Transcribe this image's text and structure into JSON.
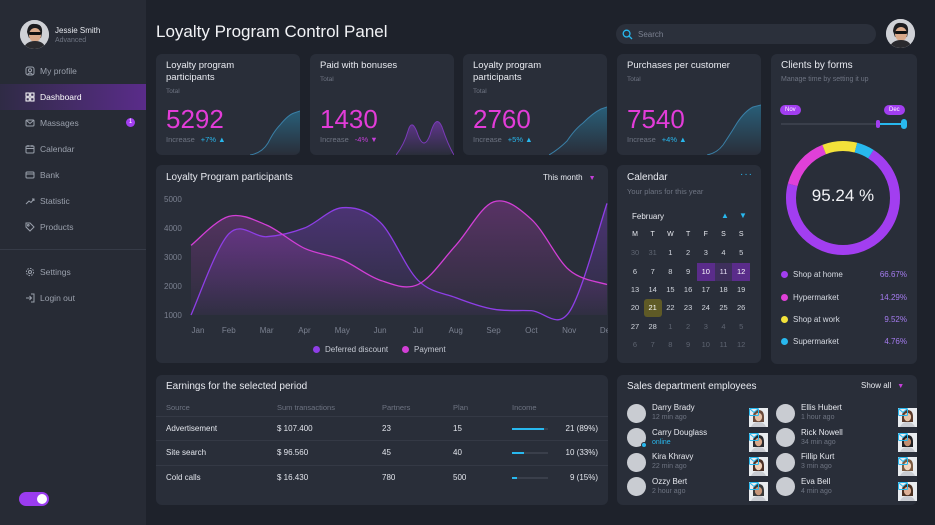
{
  "user": {
    "name": "Jessie Smith",
    "level": "Advanced"
  },
  "nav": [
    {
      "label": "My profile",
      "icon": "profile-icon"
    },
    {
      "label": "Dashboard",
      "icon": "dashboard-icon",
      "active": true
    },
    {
      "label": "Massages",
      "icon": "mail-icon",
      "badge": "1"
    },
    {
      "label": "Calendar",
      "icon": "calendar-icon"
    },
    {
      "label": "Bank",
      "icon": "bank-icon"
    },
    {
      "label": "Statistic",
      "icon": "trend-icon"
    },
    {
      "label": "Products",
      "icon": "tag-icon"
    }
  ],
  "nav_bottom": [
    {
      "label": "Settings",
      "icon": "gear-icon"
    },
    {
      "label": "Login out",
      "icon": "logout-icon"
    }
  ],
  "header": {
    "title": "Loyalty Program Control Panel",
    "search_placeholder": "Search"
  },
  "stats": [
    {
      "title": "Loyalty program participants",
      "sub": "Total",
      "value": "5292",
      "inc_label": "Increase",
      "pct": "+7%",
      "dir": "up"
    },
    {
      "title": "Paid with bonuses",
      "sub": "Total",
      "value": "1430",
      "inc_label": "Increase",
      "pct": "-4%",
      "dir": "down"
    },
    {
      "title": "Loyalty program participants",
      "sub": "Total",
      "value": "2760",
      "inc_label": "Increase",
      "pct": "+5%",
      "dir": "up"
    },
    {
      "title": "Purchases per customer",
      "sub": "Total",
      "value": "7540",
      "inc_label": "Increase",
      "pct": "+4%",
      "dir": "up"
    }
  ],
  "main_chart": {
    "title": "Loyalty Program participants",
    "period": "This month",
    "legend_deferred": "Deferred discount",
    "legend_payment": "Payment",
    "y_ticks": [
      "5000",
      "4000",
      "3000",
      "2000",
      "1000"
    ]
  },
  "chart_data": {
    "type": "area",
    "title": "Loyalty Program participants",
    "categories": [
      "Jan",
      "Feb",
      "Mar",
      "Apr",
      "May",
      "Jun",
      "Jul",
      "Aug",
      "Sep",
      "Oct",
      "Nov",
      "Dec"
    ],
    "series": [
      {
        "name": "Deferred discount",
        "color": "#8e3ee6",
        "values": [
          1000,
          3800,
          3700,
          4000,
          4700,
          4200,
          2200,
          1600,
          1200,
          1150,
          1100,
          4850
        ]
      },
      {
        "name": "Payment",
        "color": "#d23fd6",
        "values": [
          3400,
          4400,
          4100,
          3300,
          2900,
          2200,
          2050,
          3400,
          4900,
          4300,
          2550,
          2050
        ]
      }
    ],
    "ylim": [
      1000,
      5000
    ]
  },
  "calendar": {
    "title": "Calendar",
    "sub": "Your plans for this year",
    "month": "February",
    "days": [
      "M",
      "T",
      "W",
      "T",
      "F",
      "S",
      "S"
    ],
    "weeks": [
      [
        "30",
        "31",
        "1",
        "2",
        "3",
        "4",
        "5"
      ],
      [
        "6",
        "7",
        "8",
        "9",
        "10",
        "11",
        "12"
      ],
      [
        "13",
        "14",
        "15",
        "16",
        "17",
        "18",
        "19"
      ],
      [
        "20",
        "21",
        "22",
        "23",
        "24",
        "25",
        "26"
      ],
      [
        "27",
        "28",
        "1",
        "2",
        "3",
        "4",
        "5"
      ],
      [
        "6",
        "7",
        "8",
        "9",
        "10",
        "11",
        "12"
      ]
    ]
  },
  "clients": {
    "title": "Clients by forms",
    "sub": "Manage time by setting it up",
    "range_start": "Nov",
    "range_end": "Dec",
    "center": "95.24 %",
    "items": [
      {
        "label": "Shop at home",
        "value": "66.67%",
        "color": "#a23ef0",
        "num": 66.67
      },
      {
        "label": "Hypermarket",
        "value": "14.29%",
        "color": "#e040d8",
        "num": 14.29
      },
      {
        "label": "Shop at work",
        "value": "9.52%",
        "color": "#f3e23a",
        "num": 9.52
      },
      {
        "label": "Supermarket",
        "value": "4.76%",
        "color": "#28b8ee",
        "num": 4.76
      }
    ]
  },
  "earnings": {
    "title": "Earnings for the selected period",
    "headers": [
      "Source",
      "Sum transactions",
      "Partners",
      "Plan",
      "Income"
    ],
    "rows": [
      {
        "source": "Advertisement",
        "sum": "$ 107.400",
        "partners": "23",
        "plan": "15",
        "income": "21 (89%)",
        "bar": 0.89
      },
      {
        "source": "Site search",
        "sum": "$ 96.560",
        "partners": "45",
        "plan": "40",
        "income": "10 (33%)",
        "bar": 0.33
      },
      {
        "source": "Cold calls",
        "sum": "$ 16.430",
        "partners": "780",
        "plan": "500",
        "income": "9 (15%)",
        "bar": 0.15
      }
    ]
  },
  "employees": {
    "title": "Sales department employees",
    "show_all": "Show all",
    "left": [
      {
        "name": "Darry Brady",
        "status": "12 min ago"
      },
      {
        "name": "Carry Douglass",
        "status": "online",
        "online": true
      },
      {
        "name": "Kira Khravy",
        "status": "22 min ago"
      },
      {
        "name": "Ozzy Bert",
        "status": "2 hour ago"
      }
    ],
    "right": [
      {
        "name": "Ellis Hubert",
        "status": "1 hour ago"
      },
      {
        "name": "Rick Nowell",
        "status": "34 min ago"
      },
      {
        "name": "Fillip Kurt",
        "status": "3 min ago"
      },
      {
        "name": "Eva Bell",
        "status": "4 min ago"
      }
    ]
  }
}
